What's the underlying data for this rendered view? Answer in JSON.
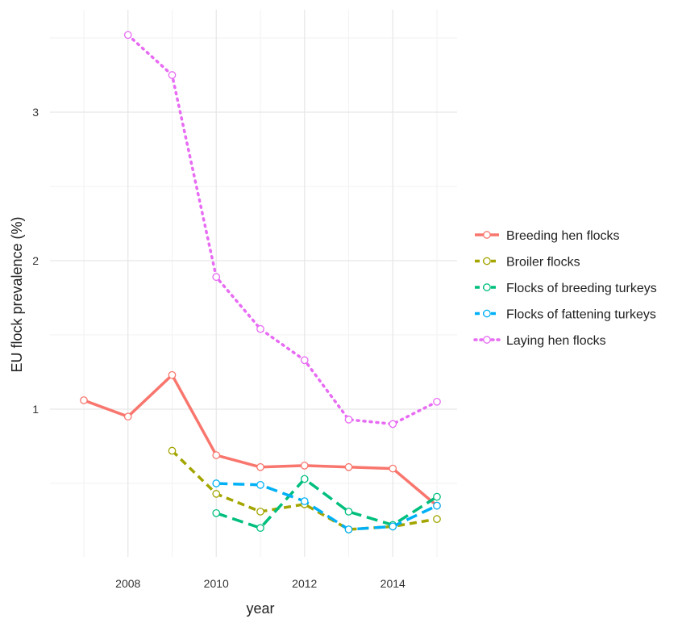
{
  "chart_data": {
    "type": "line",
    "xlabel": "year",
    "ylabel": "EU flock prevalence (%)",
    "xlim": [
      2006.9,
      2015.1
    ],
    "ylim": [
      0.1,
      3.6
    ],
    "x_ticks": [
      2008,
      2010,
      2012,
      2014
    ],
    "y_ticks": [
      1,
      2,
      3
    ],
    "grid": true,
    "legend_position": "right",
    "series": [
      {
        "name": "Breeding hen flocks",
        "color": "#F8766D",
        "dash": "solid",
        "points": [
          [
            2007,
            1.06
          ],
          [
            2008,
            0.95
          ],
          [
            2009,
            1.23
          ],
          [
            2010,
            0.69
          ],
          [
            2011,
            0.61
          ],
          [
            2012,
            0.62
          ],
          [
            2013,
            0.61
          ],
          [
            2014,
            0.6
          ],
          [
            2015,
            0.35
          ]
        ]
      },
      {
        "name": "Broiler flocks",
        "color": "#A3A500",
        "dash": "dashed",
        "points": [
          [
            2009,
            0.72
          ],
          [
            2010,
            0.43
          ],
          [
            2011,
            0.31
          ],
          [
            2012,
            0.36
          ],
          [
            2013,
            0.19
          ],
          [
            2014,
            0.21
          ],
          [
            2015,
            0.26
          ]
        ]
      },
      {
        "name": "Flocks of breeding turkeys",
        "color": "#00BF7D",
        "dash": "longdash",
        "points": [
          [
            2010,
            0.3
          ],
          [
            2011,
            0.2
          ],
          [
            2012,
            0.53
          ],
          [
            2013,
            0.31
          ],
          [
            2014,
            0.22
          ],
          [
            2015,
            0.41
          ]
        ]
      },
      {
        "name": "Flocks of fattening turkeys",
        "color": "#00B0F6",
        "dash": "longdash",
        "points": [
          [
            2010,
            0.5
          ],
          [
            2011,
            0.49
          ],
          [
            2012,
            0.38
          ],
          [
            2013,
            0.19
          ],
          [
            2014,
            0.21
          ],
          [
            2015,
            0.35
          ]
        ]
      },
      {
        "name": "Laying hen flocks",
        "color": "#E76BF3",
        "dash": "dotted",
        "points": [
          [
            2008,
            3.52
          ],
          [
            2009,
            3.25
          ],
          [
            2010,
            1.89
          ],
          [
            2011,
            1.54
          ],
          [
            2012,
            1.33
          ],
          [
            2013,
            0.93
          ],
          [
            2014,
            0.9
          ],
          [
            2015,
            1.05
          ]
        ]
      }
    ]
  }
}
